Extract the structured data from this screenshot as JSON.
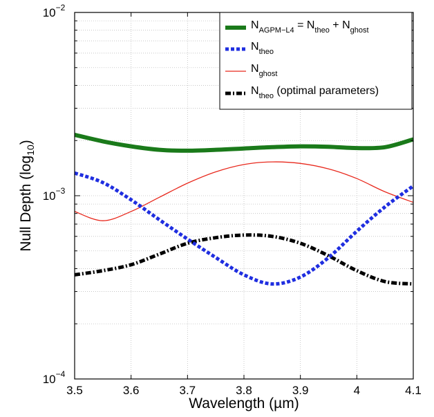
{
  "chart_data": {
    "type": "line",
    "xlabel": "Wavelength (µm)",
    "ylabel_main": "Null Depth  (log",
    "ylabel_sub": "10",
    "ylabel_close": ")",
    "xlim": [
      3.5,
      4.1
    ],
    "ylim": [
      0.0001,
      0.01
    ],
    "yscale": "log",
    "grid": true,
    "legend_position": "top-right",
    "x_ticks": [
      {
        "value": 3.5,
        "label": "3.5"
      },
      {
        "value": 3.6,
        "label": "3.6"
      },
      {
        "value": 3.7,
        "label": "3.7"
      },
      {
        "value": 3.8,
        "label": "3.8"
      },
      {
        "value": 3.9,
        "label": "3.9"
      },
      {
        "value": 4.0,
        "label": "4"
      },
      {
        "value": 4.1,
        "label": "4.1"
      }
    ],
    "y_ticks": [
      {
        "value": 0.0001,
        "base": "10",
        "exp": "−4"
      },
      {
        "value": 0.001,
        "base": "10",
        "exp": "−3"
      },
      {
        "value": 0.01,
        "base": "10",
        "exp": "−2"
      }
    ],
    "x": [
      3.5,
      3.55,
      3.6,
      3.65,
      3.7,
      3.75,
      3.8,
      3.85,
      3.9,
      3.95,
      4.0,
      4.05,
      4.1
    ],
    "series": [
      {
        "key": "agpm",
        "legend": [
          {
            "t": "N",
            "s": false
          },
          {
            "t": "AGPM−L4",
            "s": true
          },
          {
            "t": " = N",
            "s": false
          },
          {
            "t": "theo",
            "s": true
          },
          {
            "t": " + N",
            "s": false
          },
          {
            "t": "ghost",
            "s": true
          }
        ],
        "color": "#1a7a1a",
        "width": 6,
        "dash": "",
        "values": [
          0.00215,
          0.00198,
          0.00186,
          0.00178,
          0.00176,
          0.00178,
          0.00181,
          0.00184,
          0.00186,
          0.00185,
          0.00182,
          0.00184,
          0.00203
        ]
      },
      {
        "key": "theo",
        "legend": [
          {
            "t": "N",
            "s": false
          },
          {
            "t": "theo",
            "s": true
          }
        ],
        "color": "#1f2ee0",
        "width": 5,
        "dash": "5,3",
        "values": [
          0.00133,
          0.00118,
          0.00095,
          0.00074,
          0.00058,
          0.00046,
          0.00037,
          0.00033,
          0.00036,
          0.00046,
          0.00064,
          0.00087,
          0.00113
        ]
      },
      {
        "key": "ghost",
        "legend": [
          {
            "t": "N",
            "s": false
          },
          {
            "t": "ghost",
            "s": true
          }
        ],
        "color": "#e8281c",
        "width": 1.3,
        "dash": "",
        "values": [
          0.00082,
          0.00073,
          0.00082,
          0.00098,
          0.00117,
          0.00135,
          0.00148,
          0.00153,
          0.0015,
          0.0014,
          0.00124,
          0.00105,
          0.00092
        ]
      },
      {
        "key": "optimal",
        "legend": [
          {
            "t": "N",
            "s": false
          },
          {
            "t": "theo",
            "s": true
          },
          {
            "t": " (optimal parameters)",
            "s": false
          }
        ],
        "color": "#000000",
        "width": 5,
        "dash": "8,3,2,3",
        "values": [
          0.00037,
          0.00039,
          0.00042,
          0.00048,
          0.00055,
          0.00059,
          0.00061,
          0.0006,
          0.00055,
          0.00047,
          0.00039,
          0.00034,
          0.00033
        ]
      }
    ]
  }
}
